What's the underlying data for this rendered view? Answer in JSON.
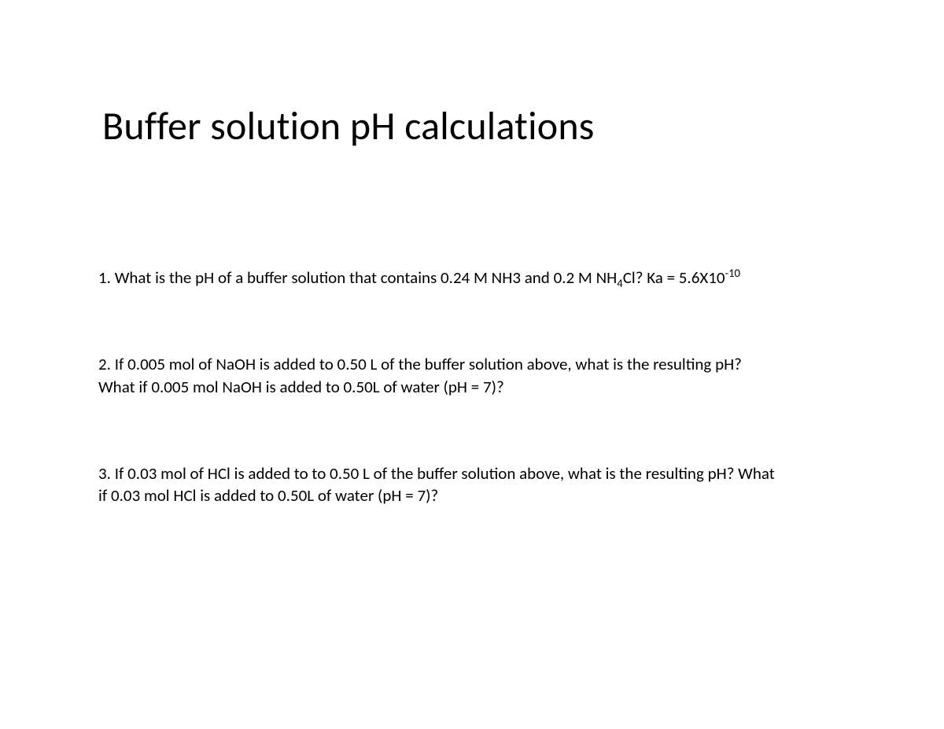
{
  "slide": {
    "title": "Buffer solution pH calculations",
    "title_fontsize": 50,
    "body_fontsize": 21,
    "background_color": "#ffffff",
    "text_color": "#000000",
    "font_family": "Calibri",
    "questions": [
      {
        "number": "1.",
        "before_sub1": "What is the pH of a buffer solution that contains 0.24 M NH3 and 0.2 M NH",
        "sub1": "4",
        "after_sub1": "Cl? Ka = 5.6X10",
        "sup1": "-10",
        "after_sup1": ""
      },
      {
        "number": "2.",
        "line1": "If 0.005 mol of NaOH is added to 0.50 L of the buffer solution above, what is the resulting pH?",
        "line2": "What if 0.005 mol NaOH is added to 0.50L of water (pH = 7)?"
      },
      {
        "number": "3.",
        "line1": "If 0.03 mol of HCl is added to to 0.50 L of the buffer solution above, what is the resulting pH? What",
        "line2": "if 0.03 mol HCl is added to 0.50L of water (pH = 7)?"
      }
    ]
  }
}
